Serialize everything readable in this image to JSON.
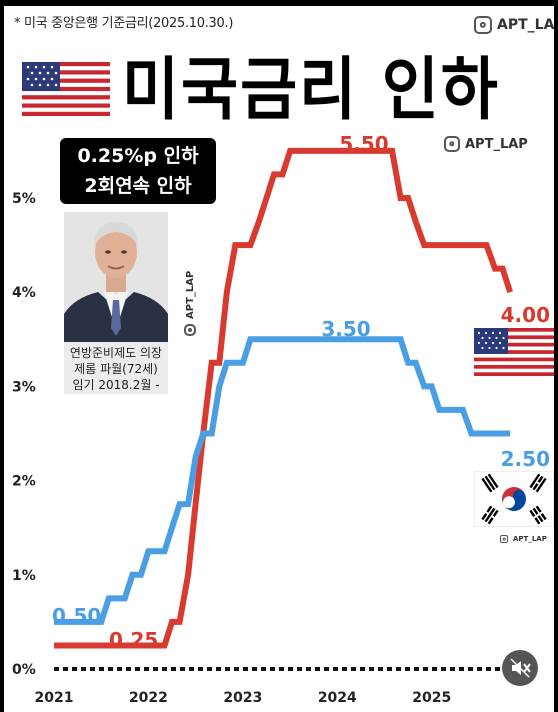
{
  "header": {
    "subtitle": "* 미국 중앙은행 기준금리(2025.10.30.)",
    "title": "미국금리 인하",
    "handle": "APT_LAP"
  },
  "badge": {
    "line1": "0.25%p 인하",
    "line2": "2회연속 인하"
  },
  "caption": {
    "line1": "연방준비제도 의장",
    "line2": "제롬 파월(72세)",
    "line3": "임기 2018.2월 -"
  },
  "icons": [
    "us-flag-icon",
    "korea-flag-icon",
    "instagram-icon",
    "mute-icon"
  ],
  "chart_data": {
    "type": "line",
    "title": "미국금리 인하",
    "xlabel": "",
    "ylabel": "",
    "x_ticks": [
      "2021",
      "2022",
      "2023",
      "2024",
      "2025"
    ],
    "y_ticks": [
      "0%",
      "1%",
      "2%",
      "3%",
      "4%",
      "5%"
    ],
    "ylim": [
      0,
      5.6
    ],
    "xlim": [
      2021,
      2025.85
    ],
    "grid": false,
    "series": [
      {
        "id": "us",
        "color": "#d93a30",
        "x": [
          2021,
          2022.17,
          2022.25,
          2022.33,
          2022.42,
          2022.5,
          2022.58,
          2022.67,
          2022.75,
          2022.83,
          2022.92,
          2023.08,
          2023.17,
          2023.25,
          2023.33,
          2023.42,
          2023.5,
          2023.58,
          2024.5,
          2024.58,
          2024.67,
          2024.75,
          2024.83,
          2024.92,
          2025.58,
          2025.67,
          2025.75,
          2025.83
        ],
        "values": [
          0.25,
          0.25,
          0.5,
          0.5,
          1.0,
          1.75,
          2.5,
          3.25,
          3.25,
          4.0,
          4.5,
          4.5,
          4.75,
          5.0,
          5.25,
          5.25,
          5.5,
          5.5,
          5.5,
          5.5,
          5.0,
          5.0,
          4.75,
          4.5,
          4.5,
          4.25,
          4.25,
          4.0
        ],
        "start_label": "0.25",
        "peak_label": "5.50",
        "end_label": "4.00"
      },
      {
        "id": "korea",
        "color": "#4a9ee3",
        "x": [
          2021,
          2021.5,
          2021.58,
          2021.75,
          2021.83,
          2021.92,
          2022.0,
          2022.08,
          2022.17,
          2022.25,
          2022.33,
          2022.42,
          2022.5,
          2022.58,
          2022.67,
          2022.75,
          2022.83,
          2022.92,
          2023.0,
          2023.08,
          2024.67,
          2024.75,
          2024.83,
          2024.92,
          2025.0,
          2025.08,
          2025.17,
          2025.25,
          2025.33,
          2025.42,
          2025.5,
          2025.83
        ],
        "values": [
          0.5,
          0.5,
          0.75,
          0.75,
          1.0,
          1.0,
          1.25,
          1.25,
          1.25,
          1.5,
          1.75,
          1.75,
          2.25,
          2.5,
          2.5,
          3.0,
          3.25,
          3.25,
          3.25,
          3.5,
          3.5,
          3.25,
          3.25,
          3.0,
          3.0,
          2.75,
          2.75,
          2.75,
          2.75,
          2.5,
          2.5,
          2.5
        ],
        "start_label": "0.50",
        "peak_label": "3.50",
        "end_label": "2.50"
      }
    ]
  }
}
